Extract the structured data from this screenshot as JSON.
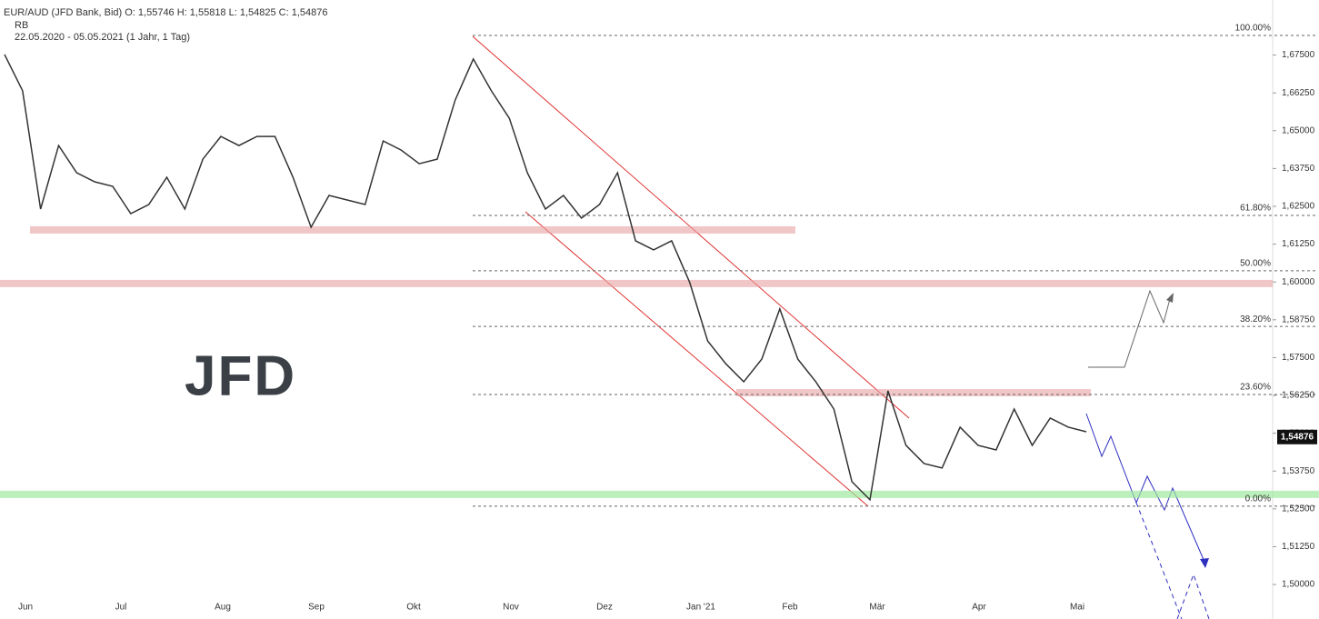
{
  "chart_data": {
    "type": "line",
    "title": "EUR/AUD (JFD Bank, Bid)  O: 1,55746  H: 1,55818  L: 1,54825  C: 1,54876",
    "legend": "RB",
    "subtitle": "22.05.2020 - 05.05.2021  (1 Jahr, 1 Tag)",
    "logo": "JFD",
    "color": "#333333",
    "values": [
      1.6752,
      1.6632,
      1.6241,
      1.6451,
      1.6361,
      1.6331,
      1.6316,
      1.6226,
      1.6256,
      1.6346,
      1.6241,
      1.6406,
      1.6481,
      1.6451,
      1.6481,
      1.6481,
      1.6346,
      1.6181,
      1.6286,
      1.6271,
      1.6256,
      1.6466,
      1.6436,
      1.6391,
      1.6406,
      1.6602,
      1.6737,
      1.6632,
      1.6541,
      1.6361,
      1.6241,
      1.6286,
      1.6211,
      1.6256,
      1.6361,
      1.6136,
      1.6106,
      1.6136,
      1.5999,
      1.5805,
      1.573,
      1.567,
      1.5745,
      1.5911,
      1.5745,
      1.567,
      1.558,
      1.534,
      1.528,
      1.564,
      1.546,
      1.54,
      1.5385,
      1.552,
      1.546,
      1.5445,
      1.558,
      1.546,
      1.555,
      1.552,
      1.5505
    ],
    "month_labels": [
      "Jun",
      "Jul",
      "Aug",
      "Sep",
      "Okt",
      "Nov",
      "Dez",
      "Jan '21",
      "Feb",
      "Mär",
      "Apr",
      "Mai"
    ],
    "ylim": [
      1.4886,
      1.6932
    ],
    "yticks": [
      {
        "value": 1.5,
        "label": "1,50000"
      },
      {
        "value": 1.5125,
        "label": "1,51250"
      },
      {
        "value": 1.525,
        "label": "1,52500"
      },
      {
        "value": 1.5375,
        "label": "1,53750"
      },
      {
        "value": 1.55,
        "label": "1,55000"
      },
      {
        "value": 1.5625,
        "label": "1,56250"
      },
      {
        "value": 1.575,
        "label": "1,57500"
      },
      {
        "value": 1.5875,
        "label": "1,58750"
      },
      {
        "value": 1.6,
        "label": "1,60000"
      },
      {
        "value": 1.6125,
        "label": "1,61250"
      },
      {
        "value": 1.625,
        "label": "1,62500"
      },
      {
        "value": 1.6375,
        "label": "1,63750"
      },
      {
        "value": 1.65,
        "label": "1,65000"
      },
      {
        "value": 1.6625,
        "label": "1,66250"
      },
      {
        "value": 1.675,
        "label": "1,67500"
      }
    ],
    "fib_levels": [
      {
        "value": 1.6815,
        "label": "100.00%"
      },
      {
        "value": 1.622,
        "label": "61.80%"
      },
      {
        "value": 1.6037,
        "label": "50.00%"
      },
      {
        "value": 1.5853,
        "label": "38.20%"
      },
      {
        "value": 1.5628,
        "label": "23.60%"
      },
      {
        "value": 1.5259,
        "label": "0.00%"
      }
    ],
    "resistance_bands": [
      1.6172,
      1.5995,
      1.5634
    ],
    "support_bands": [
      1.5298
    ],
    "last_price": {
      "value": 1.54876,
      "label": "1,54876"
    }
  }
}
